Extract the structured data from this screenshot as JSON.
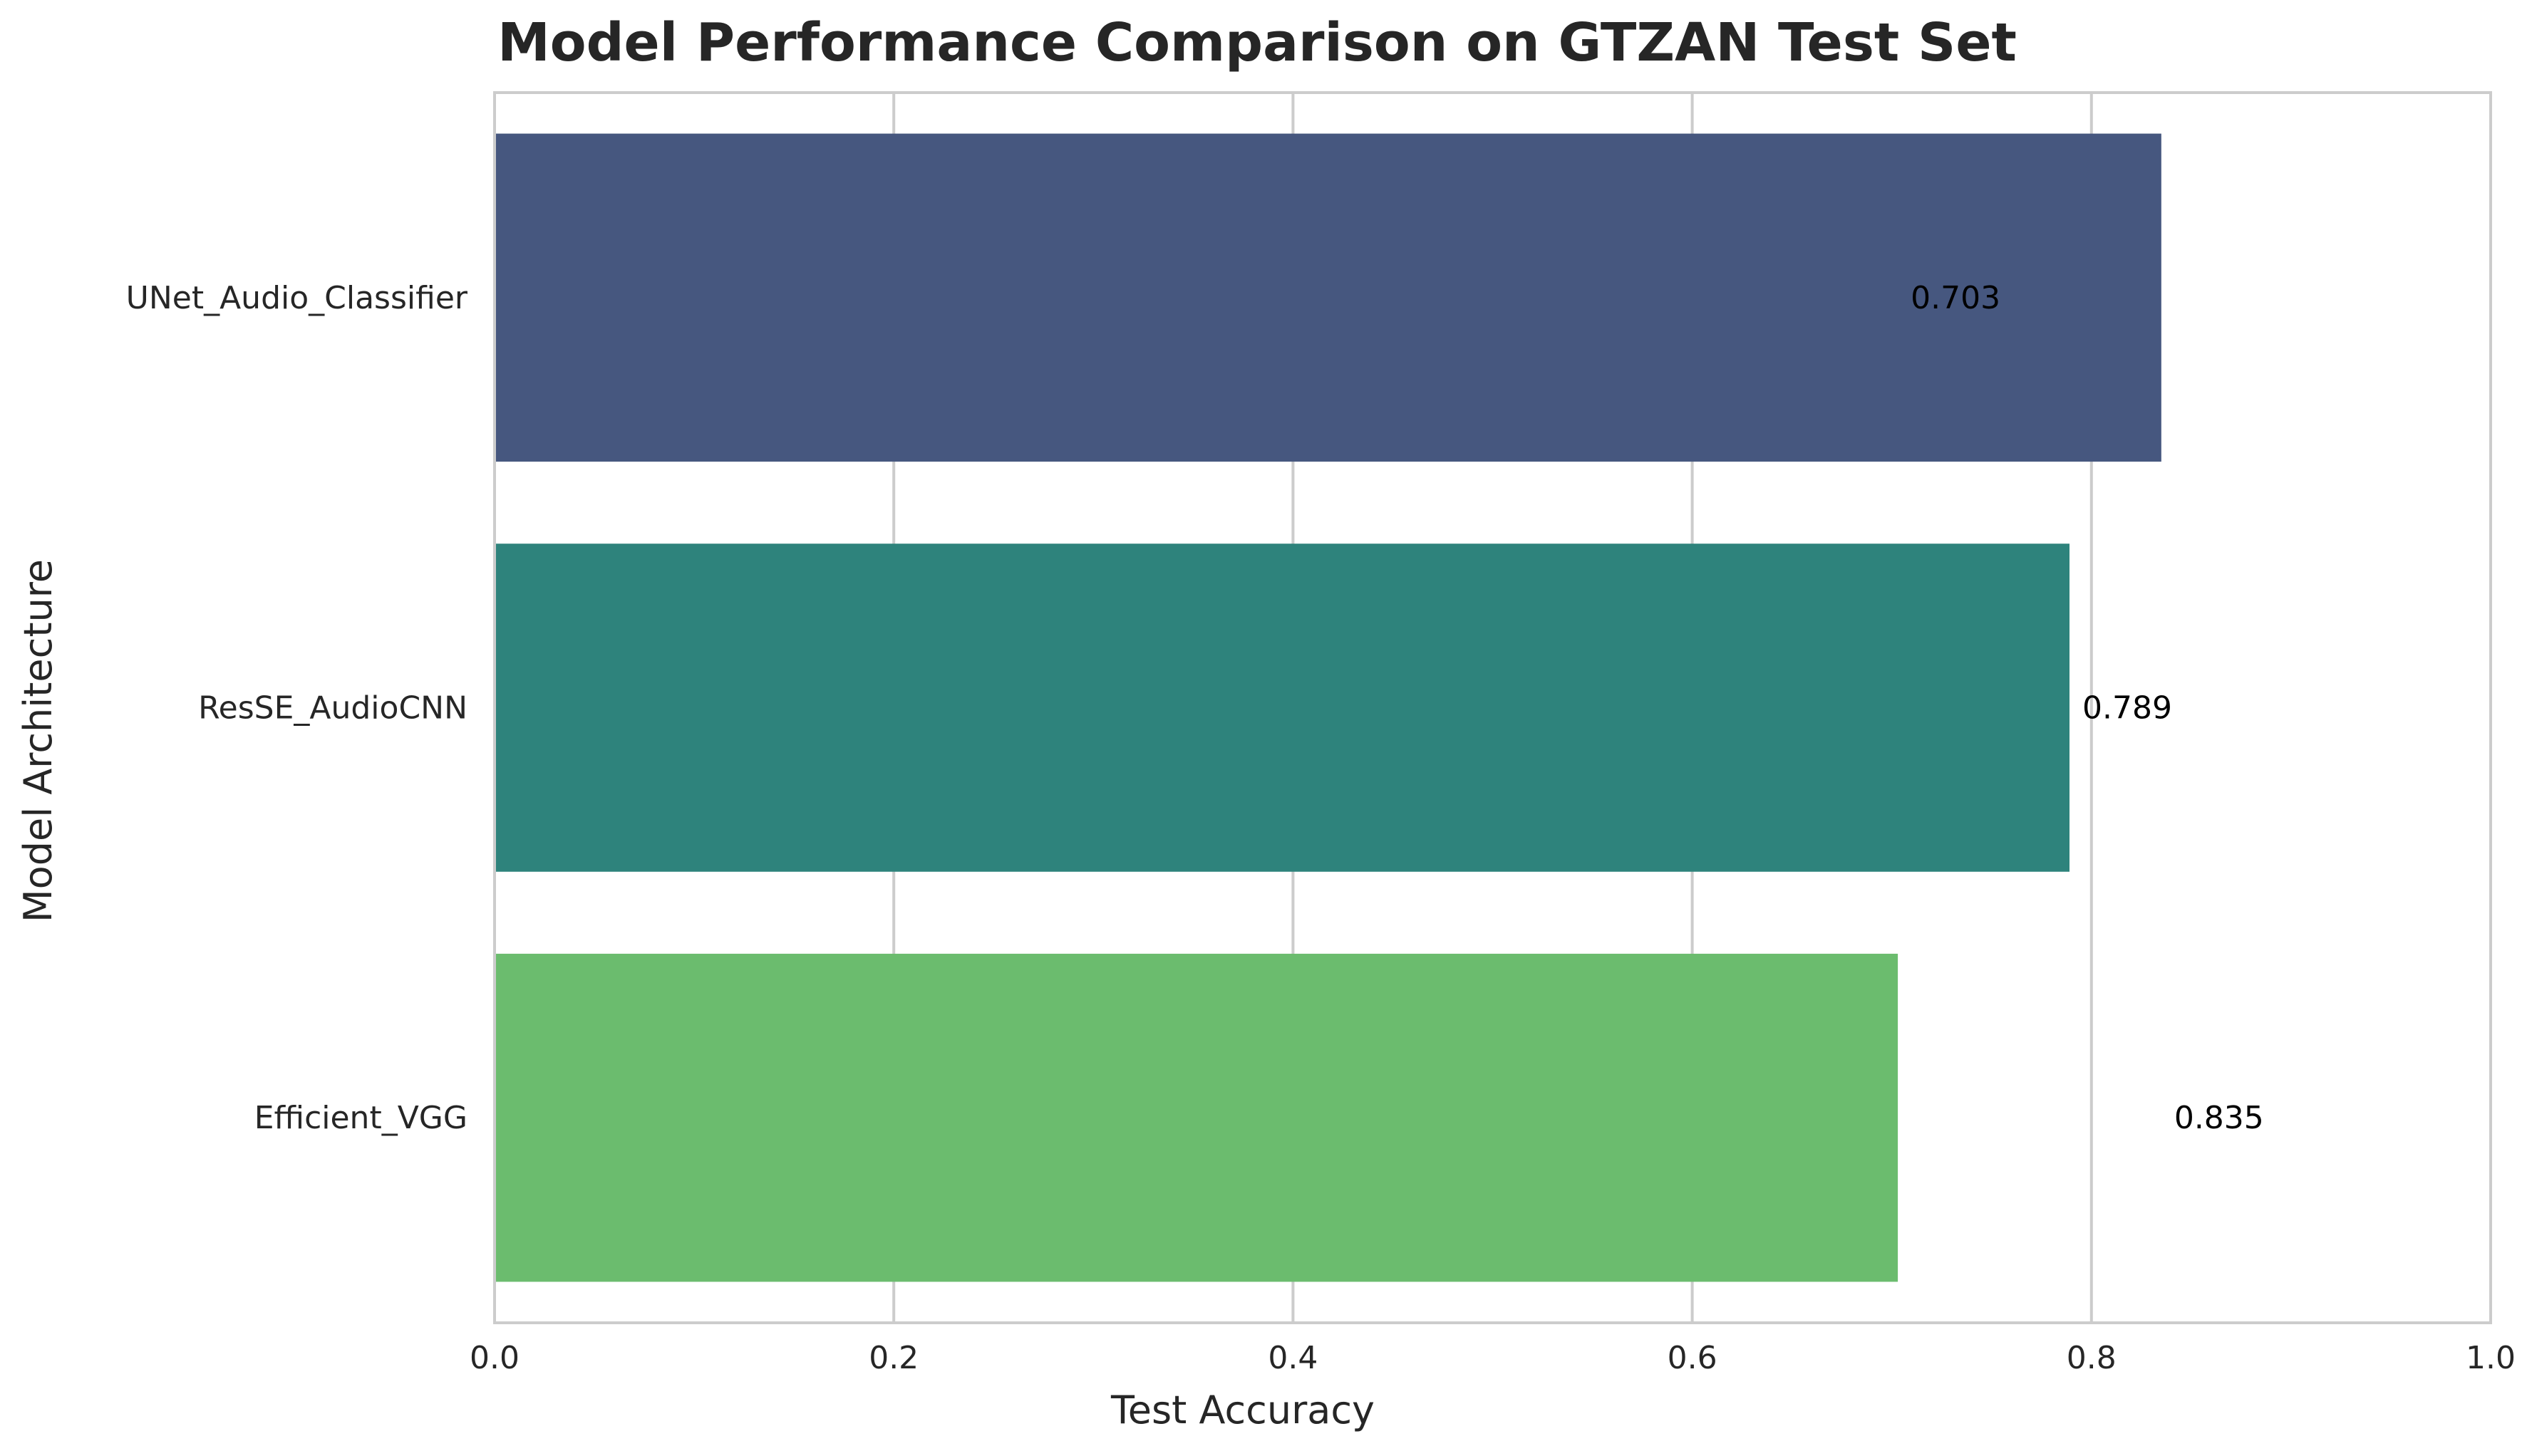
{
  "chart_data": {
    "type": "bar",
    "orientation": "horizontal",
    "title": "Model Performance Comparison on GTZAN Test Set",
    "xlabel": "Test Accuracy",
    "ylabel": "Model Architecture",
    "categories": [
      "UNet_Audio_Classifier",
      "ResSE_AudioCNN",
      "Efficient_VGG"
    ],
    "values": [
      0.835,
      0.789,
      0.703
    ],
    "data_labels": [
      "0.703",
      "0.789",
      "0.835"
    ],
    "xlim": [
      0.0,
      1.0
    ],
    "xticks": [
      "0.0",
      "0.2",
      "0.4",
      "0.6",
      "0.8",
      "1.0"
    ],
    "grid": true,
    "colors": [
      "#46577f",
      "#2e837c",
      "#6bbc6e"
    ]
  }
}
